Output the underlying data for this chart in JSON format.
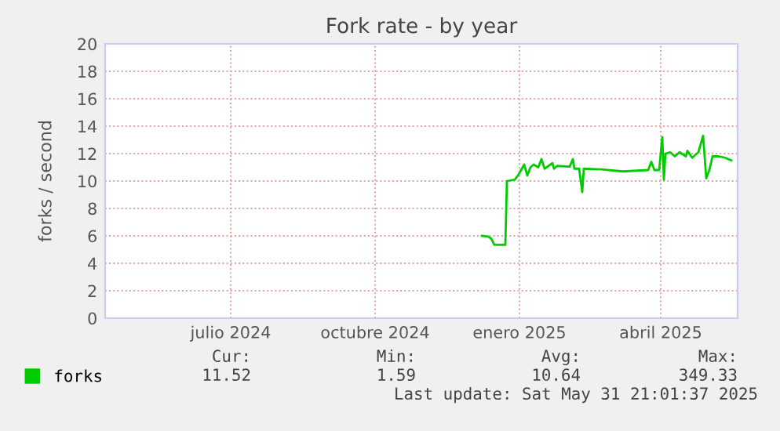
{
  "chart_data": {
    "type": "line",
    "title": "Fork rate - by year",
    "ylabel": "forks / second",
    "x": [
      "2024-12-22",
      "2024-12-26",
      "2024-12-28",
      "2024-12-30",
      "2025-01-06",
      "2025-01-07",
      "2025-01-12",
      "2025-01-14",
      "2025-01-18",
      "2025-01-20",
      "2025-01-22",
      "2025-01-24",
      "2025-01-27",
      "2025-01-29",
      "2025-01-31",
      "2025-02-05",
      "2025-02-06",
      "2025-02-08",
      "2025-02-16",
      "2025-02-18",
      "2025-02-19",
      "2025-02-22",
      "2025-02-24",
      "2025-02-25",
      "2025-03-08",
      "2025-03-22",
      "2025-04-07",
      "2025-04-09",
      "2025-04-11",
      "2025-04-14",
      "2025-04-16",
      "2025-04-17",
      "2025-04-18",
      "2025-04-21",
      "2025-04-24",
      "2025-04-27",
      "2025-05-01",
      "2025-05-02",
      "2025-05-05",
      "2025-05-09",
      "2025-05-12",
      "2025-05-14",
      "2025-05-16",
      "2025-05-18",
      "2025-05-22",
      "2025-05-26",
      "2025-05-30"
    ],
    "series": [
      {
        "name": "forks",
        "color": "#00cc00",
        "values": [
          6.0,
          5.95,
          5.8,
          5.35,
          5.35,
          10.0,
          10.1,
          10.4,
          11.2,
          10.4,
          11.0,
          11.2,
          11.0,
          11.6,
          10.9,
          11.3,
          10.9,
          11.1,
          11.05,
          11.6,
          10.9,
          10.9,
          9.2,
          10.9,
          10.85,
          10.7,
          10.8,
          11.4,
          10.8,
          10.8,
          13.2,
          10.1,
          12.0,
          12.1,
          11.8,
          12.1,
          11.8,
          12.2,
          11.7,
          12.1,
          13.3,
          10.2,
          10.8,
          11.8,
          11.8,
          11.7,
          11.5
        ]
      }
    ],
    "xlim": [
      "2024-04-26",
      "2025-06-03"
    ],
    "xticks": [
      {
        "value": "2024-07-15",
        "label": "julio 2024"
      },
      {
        "value": "2024-10-15",
        "label": "octubre 2024"
      },
      {
        "value": "2025-01-15",
        "label": "enero 2025"
      },
      {
        "value": "2025-04-15",
        "label": "abril 2025"
      }
    ],
    "ylim": [
      0,
      20
    ],
    "yticks": [
      0,
      2,
      4,
      6,
      8,
      10,
      12,
      14,
      16,
      18,
      20
    ],
    "grid": true,
    "legend": "bottom left",
    "marker": "none",
    "line_style": "solid",
    "annotations": [
      "Cur:",
      "Min:",
      "Avg:",
      "Max:",
      "11.52",
      "1.59",
      "10.64",
      "349.33",
      "Last update: Sat May 31 21:01:37 2025"
    ]
  }
}
